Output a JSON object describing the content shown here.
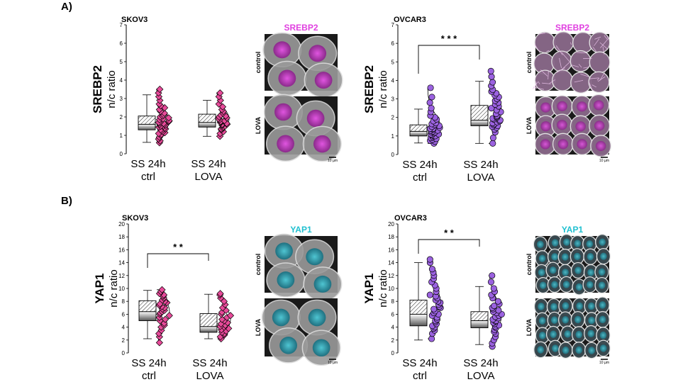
{
  "section_labels": [
    "A)",
    "B)"
  ],
  "scale_bar_label": "10 µm",
  "colors": {
    "pink": "#e84a9a",
    "purple": "#9b62e0",
    "srebp2_label": "#e040e0",
    "yap1_label": "#20c0d0",
    "magenta_nuclei": "#cc33cc",
    "cyan_nuclei": "#2aa8b8"
  },
  "chart_data": [
    {
      "type": "box",
      "cell_line": "SKOV3",
      "ylabel_main": "SREBP2",
      "ylabel_sub": "n/c ratio",
      "ylim": [
        0,
        7
      ],
      "yticks": [
        "0",
        "1",
        "2",
        "3",
        "4",
        "5",
        "6",
        "7"
      ],
      "significance": "",
      "categories": [
        [
          "SS 24h",
          "ctrl"
        ],
        [
          "SS 24h",
          "LOVA"
        ]
      ],
      "marker": "diamond",
      "color": "#e84a9a",
      "groups": [
        {
          "min": 0.62,
          "q1": 1.3,
          "median": 1.6,
          "q3": 2.05,
          "max": 3.2,
          "points": [
            0.6,
            0.7,
            0.8,
            0.9,
            1.0,
            1.05,
            1.1,
            1.15,
            1.2,
            1.25,
            1.3,
            1.35,
            1.4,
            1.45,
            1.5,
            1.5,
            1.55,
            1.6,
            1.6,
            1.65,
            1.7,
            1.7,
            1.75,
            1.8,
            1.85,
            1.9,
            1.95,
            2.0,
            2.05,
            2.1,
            2.2,
            2.3,
            2.4,
            2.5,
            2.6,
            2.7,
            2.9,
            3.1,
            3.3,
            3.5
          ]
        },
        {
          "min": 0.95,
          "q1": 1.45,
          "median": 1.7,
          "q3": 2.15,
          "max": 2.9,
          "points": [
            0.95,
            1.1,
            1.2,
            1.3,
            1.35,
            1.4,
            1.45,
            1.5,
            1.55,
            1.6,
            1.6,
            1.65,
            1.7,
            1.7,
            1.75,
            1.8,
            1.85,
            1.9,
            1.95,
            2.0,
            2.05,
            2.1,
            2.2,
            2.3,
            2.4,
            2.55,
            2.7,
            2.9,
            3.1,
            3.3
          ]
        }
      ],
      "panel_label_color": "#e040e0",
      "image_label": "SREBP2",
      "image_rows": [
        "control",
        "LOVA"
      ]
    },
    {
      "type": "box",
      "cell_line": "OVCAR3",
      "ylabel_main": "SREBP2",
      "ylabel_sub": "n/c ratio",
      "ylim": [
        0,
        7
      ],
      "yticks": [
        "0",
        "1",
        "2",
        "3",
        "4",
        "5",
        "6",
        "7"
      ],
      "significance": "* * *",
      "categories": [
        [
          "SS 24h",
          "ctrl"
        ],
        [
          "SS 24h",
          "LOVA"
        ]
      ],
      "marker": "circle",
      "color": "#9b62e0",
      "groups": [
        {
          "min": 0.62,
          "q1": 1.0,
          "median": 1.25,
          "q3": 1.6,
          "max": 2.45,
          "points": [
            0.6,
            0.7,
            0.75,
            0.8,
            0.85,
            0.9,
            0.95,
            1.0,
            1.0,
            1.05,
            1.1,
            1.1,
            1.15,
            1.2,
            1.2,
            1.25,
            1.3,
            1.3,
            1.35,
            1.4,
            1.4,
            1.45,
            1.5,
            1.55,
            1.6,
            1.65,
            1.7,
            1.8,
            1.9,
            2.0,
            2.1,
            2.3,
            2.5,
            2.8,
            3.1,
            3.6
          ]
        },
        {
          "min": 0.6,
          "q1": 1.55,
          "median": 1.85,
          "q3": 2.65,
          "max": 3.95,
          "points": [
            0.6,
            0.9,
            1.2,
            1.35,
            1.45,
            1.5,
            1.55,
            1.6,
            1.65,
            1.7,
            1.75,
            1.8,
            1.85,
            1.9,
            1.95,
            2.0,
            2.05,
            2.1,
            2.2,
            2.3,
            2.4,
            2.5,
            2.6,
            2.7,
            2.8,
            2.9,
            3.0,
            3.1,
            3.2,
            3.3,
            3.4,
            3.5,
            3.7,
            3.9,
            4.2,
            4.5
          ]
        }
      ],
      "panel_label_color": "#e040e0",
      "image_label": "SREBP2",
      "image_rows": [
        "control",
        "LOVA"
      ]
    },
    {
      "type": "box",
      "cell_line": "SKOV3",
      "ylabel_main": "YAP1",
      "ylabel_sub": "n/c ratio",
      "ylim": [
        0,
        20
      ],
      "yticks": [
        "0",
        "2",
        "4",
        "6",
        "8",
        "10",
        "12",
        "14",
        "16",
        "18",
        "20"
      ],
      "significance": "* *",
      "categories": [
        [
          "SS 24h",
          "ctrl"
        ],
        [
          "SS 24h",
          "LOVA"
        ]
      ],
      "marker": "diamond",
      "color": "#e84a9a",
      "groups": [
        {
          "min": 2.2,
          "q1": 5.0,
          "median": 6.4,
          "q3": 8.1,
          "max": 9.7,
          "points": [
            1.6,
            2.5,
            3.0,
            3.5,
            4.0,
            4.3,
            4.6,
            5.0,
            5.2,
            5.5,
            5.8,
            6.0,
            6.2,
            6.4,
            6.6,
            6.8,
            7.0,
            7.2,
            7.4,
            7.6,
            7.8,
            8.0,
            8.2,
            8.5,
            8.8,
            9.0,
            9.2,
            9.5,
            9.8
          ]
        },
        {
          "min": 2.2,
          "q1": 3.2,
          "median": 4.1,
          "q3": 6.1,
          "max": 9.1,
          "points": [
            2.2,
            2.5,
            2.8,
            3.0,
            3.2,
            3.4,
            3.6,
            3.8,
            4.0,
            4.1,
            4.3,
            4.5,
            4.7,
            5.0,
            5.2,
            5.5,
            5.8,
            6.0,
            6.3,
            6.6,
            7.0,
            7.5,
            8.0,
            8.5,
            9.0,
            9.2
          ]
        }
      ],
      "panel_label_color": "#20c0d0",
      "image_label": "YAP1",
      "image_rows": [
        "control",
        "LOVA"
      ]
    },
    {
      "type": "box",
      "cell_line": "OVCAR3",
      "ylabel_main": "YAP1",
      "ylabel_sub": "n/c ratio",
      "ylim": [
        0,
        20
      ],
      "yticks": [
        "0",
        "2",
        "4",
        "6",
        "8",
        "10",
        "12",
        "14",
        "16",
        "18",
        "20"
      ],
      "significance": "* *",
      "categories": [
        [
          "SS 24h",
          "ctrl"
        ],
        [
          "SS 24h",
          "LOVA"
        ]
      ],
      "marker": "circle",
      "color": "#9b62e0",
      "groups": [
        {
          "min": 2.0,
          "q1": 4.2,
          "median": 6.0,
          "q3": 8.2,
          "max": 14.0,
          "points": [
            2.2,
            3.0,
            3.5,
            3.8,
            4.0,
            4.2,
            4.5,
            4.8,
            5.0,
            5.2,
            5.5,
            5.8,
            6.0,
            6.2,
            6.5,
            6.8,
            7.0,
            7.2,
            7.5,
            7.8,
            8.0,
            8.2,
            8.5,
            8.8,
            9.0,
            9.5,
            10.0,
            10.5,
            11.0,
            11.5,
            12.0,
            12.5,
            13.0,
            14.0,
            14.5
          ]
        },
        {
          "min": 1.3,
          "q1": 3.9,
          "median": 5.0,
          "q3": 6.4,
          "max": 10.3,
          "points": [
            1.0,
            1.5,
            2.0,
            2.5,
            3.0,
            3.3,
            3.6,
            3.9,
            4.1,
            4.3,
            4.5,
            4.7,
            4.9,
            5.0,
            5.2,
            5.4,
            5.6,
            5.8,
            6.0,
            6.2,
            6.4,
            6.6,
            6.8,
            7.0,
            7.3,
            7.6,
            8.0,
            8.5,
            9.0,
            9.5,
            10.0,
            11.0,
            12.0
          ]
        }
      ],
      "panel_label_color": "#20c0d0",
      "image_label": "YAP1",
      "image_rows": [
        "control",
        "LOVA"
      ]
    }
  ]
}
